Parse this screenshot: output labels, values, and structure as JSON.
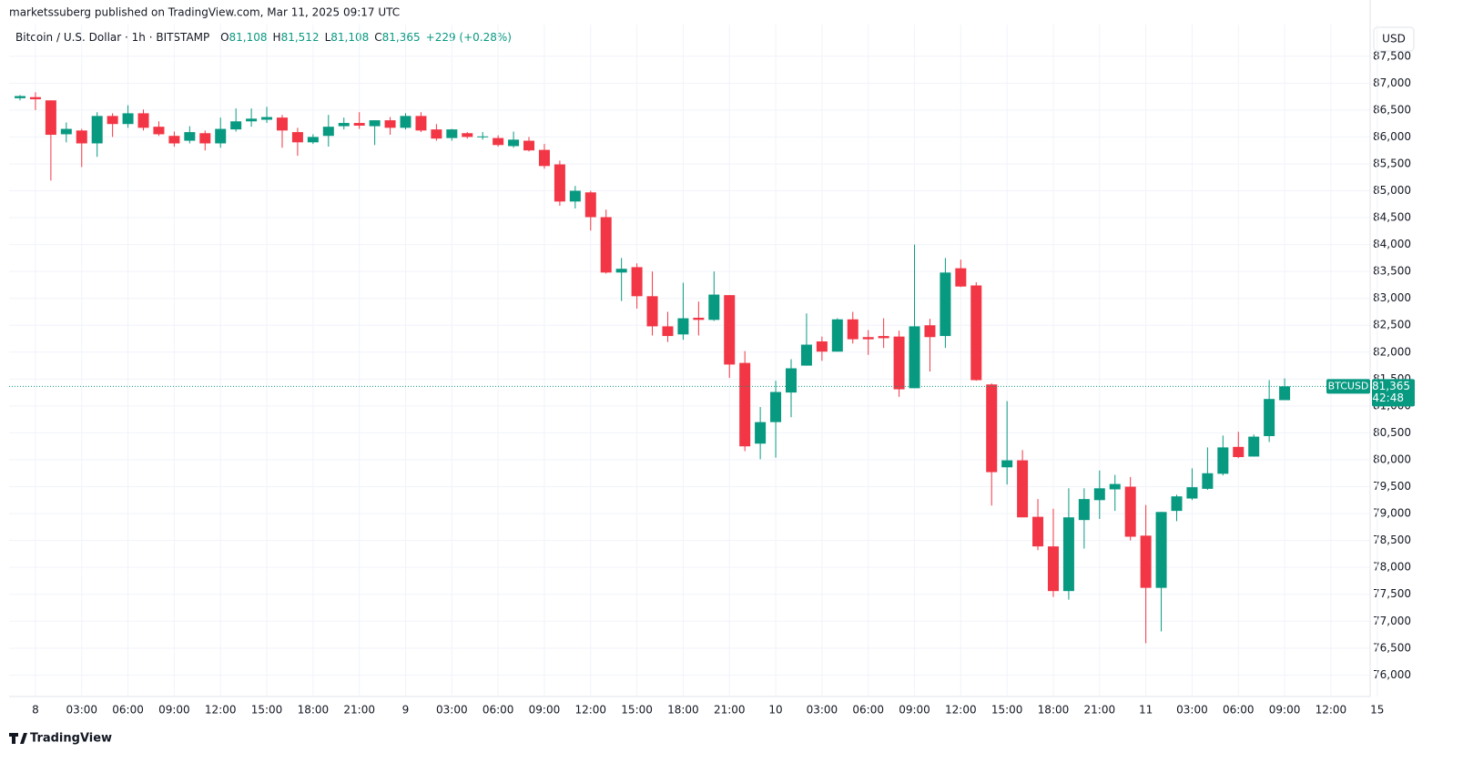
{
  "chart_data": {
    "type": "candlestick",
    "published": "marketssuberg published on TradingView.com, Mar 11, 2025 09:17 UTC",
    "title": "Bitcoin / U.S. Dollar · 1h · BITSTAMP",
    "header_keys": [
      "O",
      "H",
      "L",
      "C"
    ],
    "header_values": [
      "81,108",
      "81,512",
      "81,108",
      "81,365"
    ],
    "change": "+229 (+0.28%)",
    "currency": "USD",
    "symbol": "BTCUSD",
    "last_price_label": "81,365",
    "countdown": "42:48",
    "footer": "TradingView",
    "up_color": "#089981",
    "down_color": "#f23645",
    "grid": true,
    "categories": [
      null,
      "8",
      null,
      null,
      "03:00",
      null,
      null,
      "06:00",
      null,
      null,
      "09:00",
      null,
      null,
      "12:00",
      null,
      null,
      "15:00",
      null,
      null,
      "18:00",
      null,
      null,
      "21:00",
      null,
      null,
      "9",
      null,
      null,
      "03:00",
      null,
      null,
      "06:00",
      null,
      null,
      "09:00",
      null,
      null,
      "12:00",
      null,
      null,
      "15:00",
      null,
      null,
      "18:00",
      null,
      null,
      "21:00",
      null,
      null,
      "10",
      null,
      null,
      "03:00",
      null,
      null,
      "06:00",
      null,
      null,
      "09:00",
      null,
      null,
      "12:00",
      null,
      null,
      "15:00",
      null,
      null,
      "18:00",
      null,
      null,
      "21:00",
      null,
      null,
      "11",
      null,
      null,
      "03:00",
      null,
      null,
      "06:00",
      null,
      null,
      "09:00",
      null,
      null,
      "12:00",
      null,
      null,
      "15"
    ],
    "open": [
      86720,
      86740,
      86680,
      86050,
      86120,
      85880,
      86390,
      86240,
      86440,
      86190,
      86020,
      85930,
      86070,
      85880,
      86140,
      86290,
      86320,
      86360,
      86090,
      85900,
      86020,
      86200,
      86260,
      86200,
      86310,
      86170,
      86390,
      86140,
      85980,
      86070,
      86000,
      85980,
      85830,
      85930,
      85760,
      85490,
      84800,
      84970,
      84510,
      83480,
      83580,
      83040,
      82480,
      82330,
      82640,
      82600,
      83060,
      81800,
      80300,
      80700,
      81250,
      81750,
      82200,
      82010,
      82610,
      82280,
      82300,
      82290,
      81330,
      82500,
      82300,
      83560,
      83240,
      81400,
      79860,
      79990,
      78940,
      78390,
      77560,
      78880,
      79250,
      79450,
      79500,
      78590,
      77620,
      79050,
      79280,
      79460,
      79740,
      80240,
      80060,
      80440,
      81108,
      null,
      null,
      null,
      null,
      null,
      null
    ],
    "high": [
      86780,
      86830,
      86680,
      86270,
      86150,
      86460,
      86440,
      86590,
      86510,
      86290,
      86100,
      86200,
      86120,
      86360,
      86530,
      86530,
      86560,
      86410,
      86170,
      86050,
      86410,
      86360,
      86460,
      86310,
      86370,
      86440,
      86460,
      86240,
      86150,
      86090,
      86090,
      86030,
      86100,
      86000,
      85870,
      85560,
      85090,
      85000,
      84650,
      83750,
      83650,
      83500,
      82750,
      83290,
      82940,
      83500,
      83060,
      82020,
      80980,
      81470,
      81870,
      82720,
      82290,
      82630,
      82750,
      82410,
      82630,
      82400,
      84000,
      82620,
      83750,
      83720,
      83300,
      81420,
      81090,
      80180,
      79270,
      79090,
      79470,
      79470,
      79800,
      79720,
      79680,
      79160,
      79030,
      79350,
      79840,
      80230,
      80450,
      80520,
      80470,
      81480,
      81512,
      null,
      null,
      null,
      null,
      null,
      null
    ],
    "low": [
      86680,
      86500,
      85190,
      85900,
      85440,
      85630,
      86000,
      86170,
      86120,
      86020,
      85820,
      85880,
      85750,
      85800,
      86100,
      86190,
      86260,
      85800,
      85650,
      85870,
      85820,
      86140,
      86150,
      85850,
      86040,
      86140,
      86090,
      85930,
      85930,
      85970,
      85950,
      85820,
      85800,
      85730,
      85410,
      84720,
      84670,
      84260,
      83460,
      82950,
      82810,
      82310,
      82190,
      82230,
      82310,
      82580,
      81520,
      80160,
      80010,
      80040,
      80790,
      81750,
      81840,
      82010,
      82160,
      81950,
      82080,
      81170,
      81330,
      81640,
      82080,
      83210,
      81470,
      79150,
      79540,
      78930,
      78320,
      77450,
      77400,
      78350,
      78900,
      79050,
      78500,
      76590,
      76810,
      78860,
      79250,
      79440,
      79710,
      80030,
      80060,
      80330,
      81108,
      null,
      null,
      null,
      null,
      null,
      null
    ],
    "close": [
      86760,
      86700,
      86040,
      86150,
      85880,
      86390,
      86240,
      86440,
      86170,
      86050,
      85880,
      86090,
      85880,
      86150,
      86290,
      86340,
      86370,
      86120,
      85900,
      86000,
      86190,
      86260,
      86210,
      86310,
      86170,
      86390,
      86120,
      85970,
      86140,
      86000,
      86010,
      85850,
      85950,
      85750,
      85460,
      84800,
      85000,
      84510,
      83480,
      83550,
      83040,
      82480,
      82300,
      82630,
      82600,
      83070,
      81770,
      80250,
      80700,
      81260,
      81700,
      82140,
      82010,
      82610,
      82240,
      82240,
      82260,
      81310,
      82480,
      82280,
      83480,
      83220,
      81480,
      79770,
      79990,
      78930,
      78390,
      77560,
      78930,
      79270,
      79470,
      79550,
      78570,
      77620,
      79030,
      79320,
      79490,
      79750,
      80230,
      80050,
      80430,
      81130,
      81365,
      null,
      null,
      null,
      null,
      null,
      null
    ],
    "ylim": [
      75600,
      87750
    ],
    "yticks": [
      {
        "value": 76000,
        "label": "76,000"
      },
      {
        "value": 76500,
        "label": "76,500"
      },
      {
        "value": 77000,
        "label": "77,000"
      },
      {
        "value": 77500,
        "label": "77,500"
      },
      {
        "value": 78000,
        "label": "78,000"
      },
      {
        "value": 78500,
        "label": "78,500"
      },
      {
        "value": 79000,
        "label": "79,000"
      },
      {
        "value": 79500,
        "label": "79,500"
      },
      {
        "value": 80000,
        "label": "80,000"
      },
      {
        "value": 80500,
        "label": "80,500"
      },
      {
        "value": 81000,
        "label": "81,000"
      },
      {
        "value": 81500,
        "label": "81,500"
      },
      {
        "value": 82000,
        "label": "82,000"
      },
      {
        "value": 82500,
        "label": "82,500"
      },
      {
        "value": 83000,
        "label": "83,000"
      },
      {
        "value": 83500,
        "label": "83,500"
      },
      {
        "value": 84000,
        "label": "84,000"
      },
      {
        "value": 84500,
        "label": "84,500"
      },
      {
        "value": 85000,
        "label": "85,000"
      },
      {
        "value": 85500,
        "label": "85,500"
      },
      {
        "value": 86000,
        "label": "86,000"
      },
      {
        "value": 86500,
        "label": "86,500"
      },
      {
        "value": 87000,
        "label": "87,000"
      },
      {
        "value": 87500,
        "label": "87,500"
      }
    ]
  }
}
